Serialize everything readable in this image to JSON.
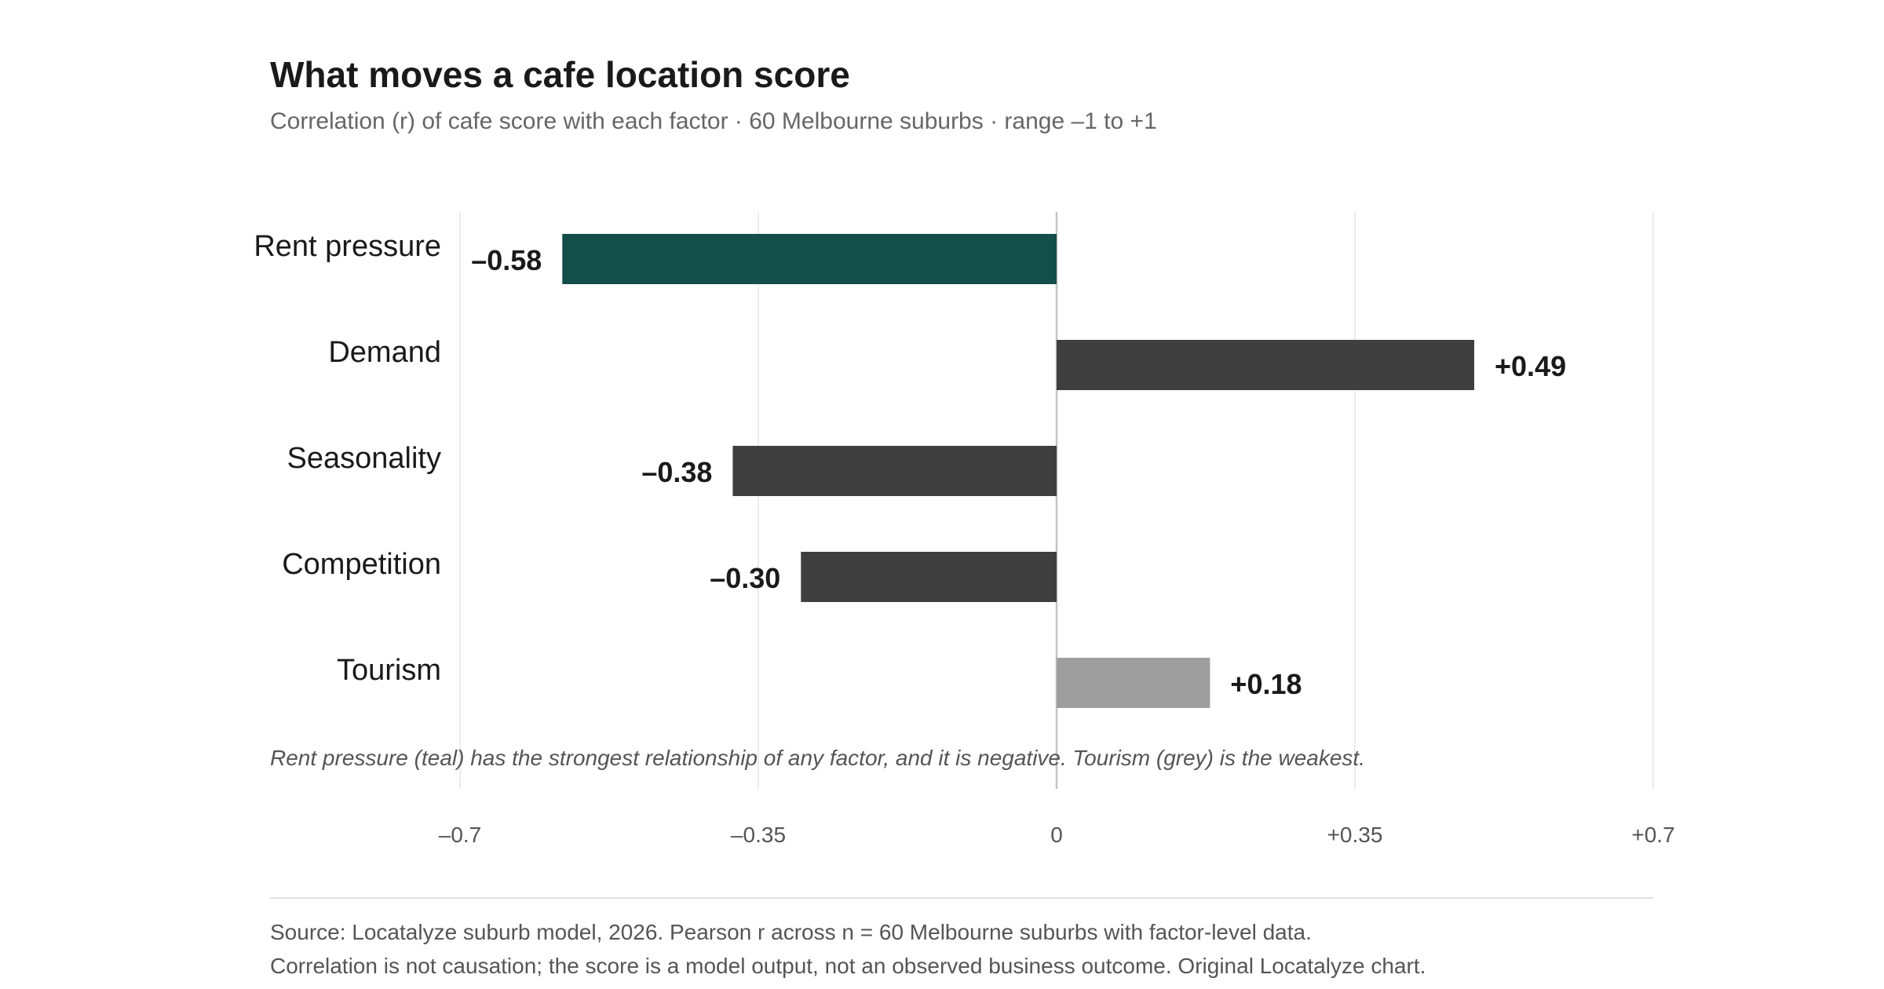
{
  "chart_data": {
    "type": "bar",
    "orientation": "horizontal",
    "title": "What moves a cafe location score",
    "subtitle": "Correlation (r) of cafe score with each factor · 60 Melbourne suburbs · range –1 to +1",
    "categories": [
      "Rent pressure",
      "Demand",
      "Seasonality",
      "Competition",
      "Tourism"
    ],
    "values": [
      -0.58,
      0.49,
      -0.38,
      -0.3,
      0.18
    ],
    "value_labels": [
      "–0.58",
      "+0.49",
      "–0.38",
      "–0.30",
      "+0.18"
    ],
    "bar_colors": [
      "#134e4a",
      "#3f3f3f",
      "#3f3f3f",
      "#3f3f3f",
      "#9e9e9e"
    ],
    "xlim": [
      -0.7,
      0.7
    ],
    "x_ticks": [
      -0.7,
      -0.35,
      0,
      0.35,
      0.7
    ],
    "x_tick_labels": [
      "–0.7",
      "–0.35",
      "0",
      "+0.35",
      "+0.7"
    ],
    "grid": "vertical",
    "annotation": "Rent pressure (teal) has the strongest relationship of any factor, and it is negative. Tourism (grey) is the weakest."
  },
  "footer": {
    "source": "Source: Locatalyze suburb model, 2026. Pearson r across n = 60 Melbourne suburbs with factor-level data.",
    "caveat": "Correlation is not causation; the score is a model output, not an observed business outcome. Original Locatalyze chart."
  }
}
